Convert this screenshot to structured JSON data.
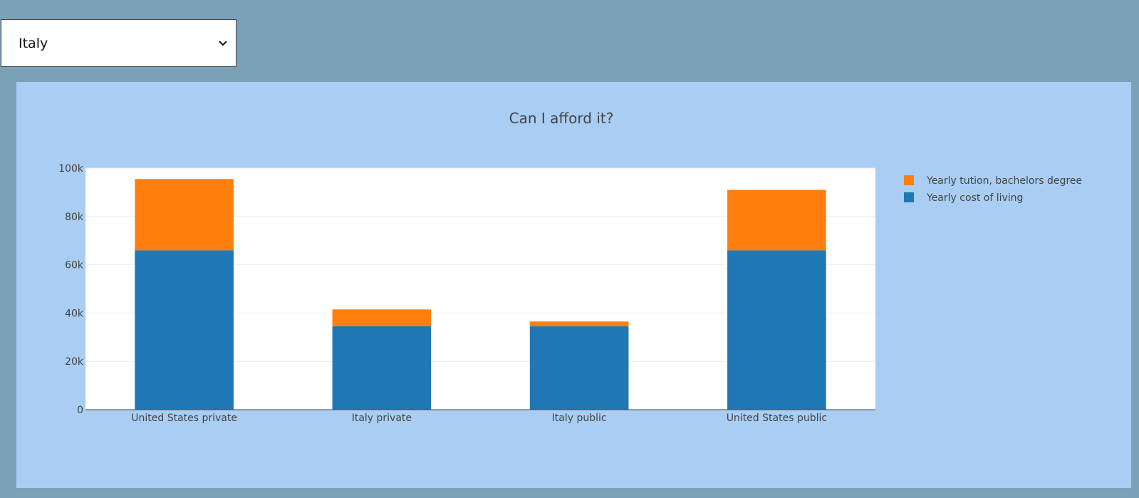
{
  "dropdown": {
    "selected": "Italy",
    "icon": "chevron-down-icon"
  },
  "colors": {
    "page_bg": "#7ca0b8",
    "panel_bg": "#a9cdf3",
    "plot_bg": "#ffffff",
    "tuition": "#ff7f0e",
    "living": "#1f77b4"
  },
  "chart_data": {
    "type": "bar",
    "barmode": "stack",
    "title": "Can I afford it?",
    "categories": [
      "United States private",
      "Italy private",
      "Italy public",
      "United States public"
    ],
    "series": [
      {
        "name": "Yearly cost of living",
        "values": [
          66000,
          34500,
          34500,
          66000
        ]
      },
      {
        "name": "Yearly tution, bachelors degree",
        "values": [
          29500,
          7000,
          2000,
          25000
        ]
      }
    ],
    "ylim": [
      0,
      100000
    ],
    "yticks": [
      0,
      20000,
      40000,
      60000,
      80000,
      100000
    ],
    "ytick_labels": [
      "0",
      "20k",
      "40k",
      "60k",
      "80k",
      "100k"
    ],
    "grid": true,
    "legend_position": "right",
    "legend_order": [
      "Yearly tution, bachelors degree",
      "Yearly cost of living"
    ]
  }
}
